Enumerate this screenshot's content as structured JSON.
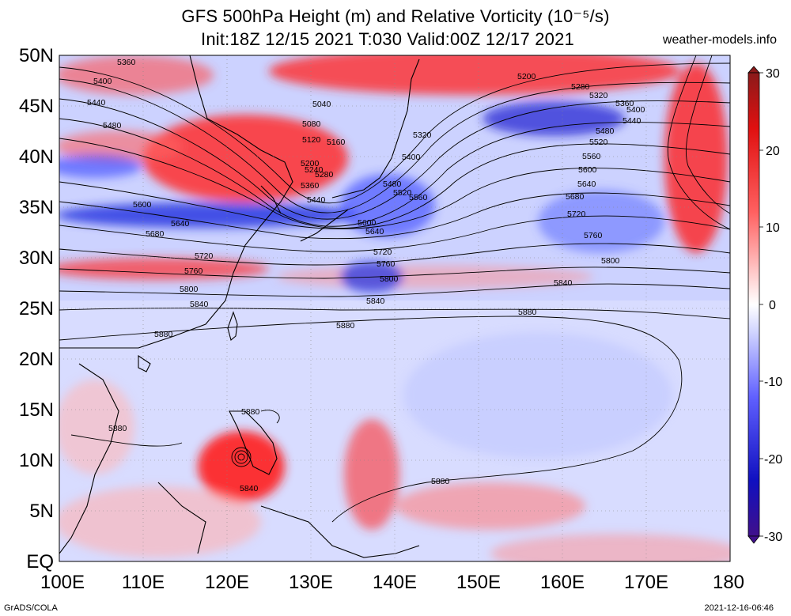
{
  "title": {
    "line1": "GFS 500hPa Height (m) and Relative Vorticity (10⁻⁵/s)",
    "line2": "Init:18Z 12/15 2021 T:030 Valid:00Z 12/17 2021",
    "site": "weather-models.info"
  },
  "lat_labels": [
    "50N",
    "45N",
    "40N",
    "35N",
    "30N",
    "25N",
    "20N",
    "15N",
    "10N",
    "5N",
    "EQ"
  ],
  "lon_labels": [
    "100E",
    "110E",
    "120E",
    "130E",
    "140E",
    "150E",
    "160E",
    "170E",
    "180"
  ],
  "colorbar": {
    "ticks": [
      "30",
      "20",
      "10",
      "0",
      "-10",
      "-20",
      "-30"
    ],
    "colors_top_to_bottom": [
      "#8b1a1a",
      "#e01010",
      "#ff5050",
      "#ffb0b0",
      "#ffffff",
      "#b0b8ff",
      "#4040ff",
      "#1010c0",
      "#40108b"
    ]
  },
  "contour_labels": [
    "5360",
    "5400",
    "5440",
    "5480",
    "5040",
    "5080",
    "5120",
    "5160",
    "5200",
    "5240",
    "5280",
    "5360",
    "5440",
    "5600",
    "5640",
    "5680",
    "5720",
    "5760",
    "5800",
    "5840",
    "5880",
    "5880",
    "5880",
    "5880",
    "5200",
    "5280",
    "5320",
    "5360",
    "5400",
    "5440",
    "5480",
    "5520",
    "5560",
    "5600",
    "5640",
    "5680",
    "5720",
    "5760",
    "5800",
    "5840",
    "5320",
    "5400",
    "5480",
    "5520",
    "5560",
    "5600",
    "5640",
    "5720",
    "5760",
    "5800",
    "5840",
    "5880",
    "5840",
    "5880"
  ],
  "footer": {
    "left": "GrADS/COLA",
    "right": "2021-12-16-06:46"
  },
  "colors": {
    "positive_vorticity": "#e8232a",
    "negative_vorticity": "#2233dd",
    "contour": "#000000"
  }
}
